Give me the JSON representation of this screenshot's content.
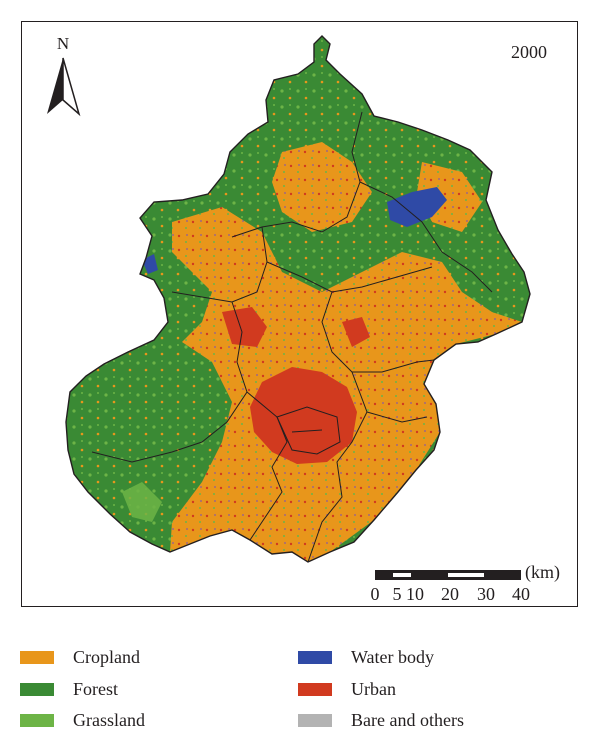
{
  "map": {
    "year": "2000",
    "north_label": "N",
    "scale": {
      "unit": "(km)",
      "ticks": [
        "0",
        "5",
        "10",
        "20",
        "30",
        "40"
      ]
    }
  },
  "legend": {
    "items": [
      {
        "label": "Cropland",
        "color": "#e8961b"
      },
      {
        "label": "Forest",
        "color": "#3a8a34"
      },
      {
        "label": "Grassland",
        "color": "#6db446"
      },
      {
        "label": "Water body",
        "color": "#2f4aa6"
      },
      {
        "label": "Urban",
        "color": "#d13a1f"
      },
      {
        "label": "Bare and others",
        "color": "#b3b3b3"
      }
    ]
  }
}
